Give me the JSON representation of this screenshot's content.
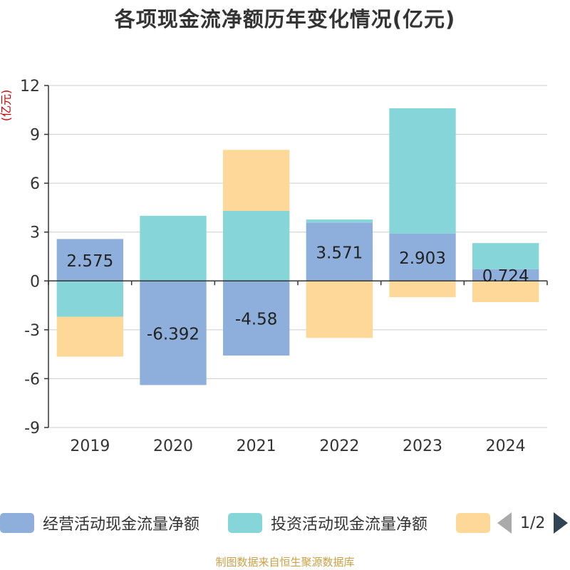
{
  "title": "各项现金流净额历年变化情况(亿元)",
  "source": "制图数据来自恒生聚源数据库",
  "legend": {
    "items": [
      "经营活动现金流量净额",
      "投资活动现金流量净额",
      ""
    ],
    "pager": "1/2"
  },
  "chart_data": {
    "type": "bar",
    "stacked": true,
    "title": "各项现金流净额历年变化情况(亿元)",
    "ylabel": "(亿元)",
    "xlabel": "",
    "categories": [
      "2019",
      "2020",
      "2021",
      "2022",
      "2023",
      "2024"
    ],
    "ylim": [
      -9,
      12
    ],
    "yticks": [
      12,
      9,
      6,
      3,
      0,
      -3,
      -6,
      -9
    ],
    "series": [
      {
        "name": "经营活动现金流量净额",
        "color": "#8eaedb",
        "values": [
          2.575,
          -6.392,
          -4.58,
          3.571,
          2.903,
          0.724
        ]
      },
      {
        "name": "投资活动现金流量净额",
        "color": "#86d5d8",
        "values": [
          -2.2,
          4.0,
          4.3,
          0.2,
          7.7,
          1.6
        ]
      },
      {
        "name": "",
        "color": "#fed898",
        "values": [
          -2.45,
          0.0,
          3.75,
          -3.5,
          -1.0,
          -1.3
        ]
      }
    ],
    "data_labels": [
      "2.575",
      "-6.392",
      "-4.58",
      "3.571",
      "2.903",
      "0.724"
    ]
  }
}
